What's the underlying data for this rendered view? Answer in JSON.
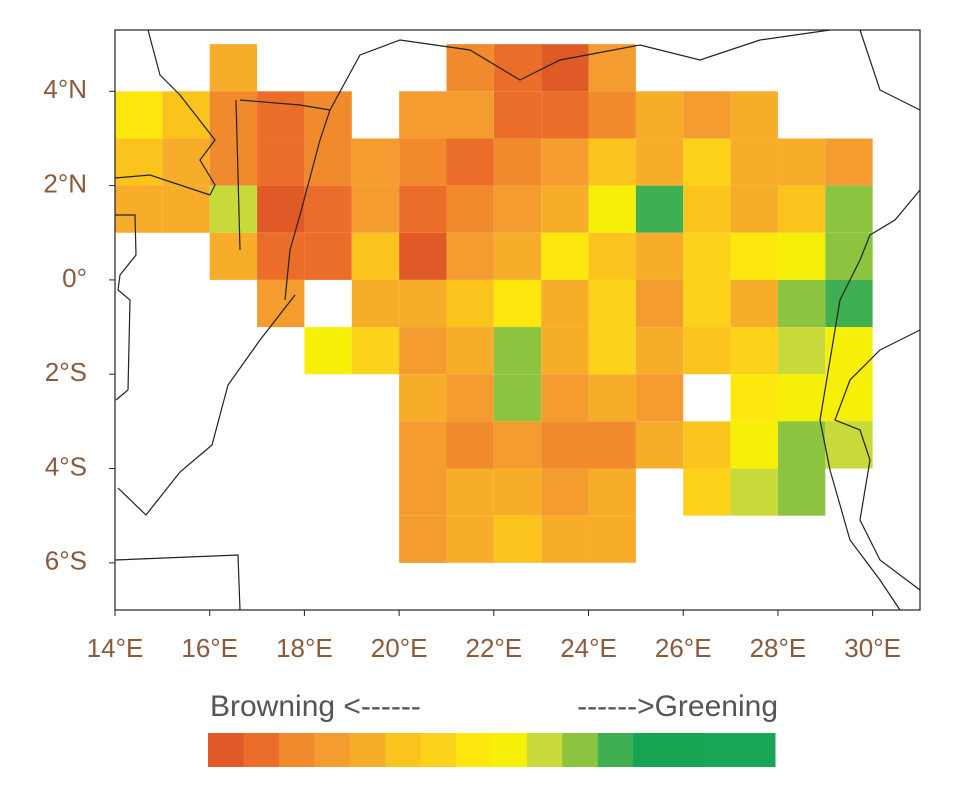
{
  "map": {
    "xlim": [
      14,
      31
    ],
    "ylim": [
      -7,
      5.3
    ],
    "xticks": [
      {
        "value": 14,
        "label": "14°E"
      },
      {
        "value": 16,
        "label": "16°E"
      },
      {
        "value": 18,
        "label": "18°E"
      },
      {
        "value": 20,
        "label": "20°E"
      },
      {
        "value": 22,
        "label": "22°E"
      },
      {
        "value": 24,
        "label": "24°E"
      },
      {
        "value": 26,
        "label": "26°E"
      },
      {
        "value": 28,
        "label": "28°E"
      },
      {
        "value": 30,
        "label": "30°E"
      }
    ],
    "yticks": [
      {
        "value": 4,
        "label": "4°N"
      },
      {
        "value": 2,
        "label": "2°N"
      },
      {
        "value": 0,
        "label": "0°"
      },
      {
        "value": -2,
        "label": "2°S"
      },
      {
        "value": -4,
        "label": "4°S"
      },
      {
        "value": -6,
        "label": "6°S"
      }
    ],
    "grid_lon0": 14,
    "grid_lat0": 5,
    "cell": 1,
    "grid": [
      [
        null,
        null,
        4,
        null,
        null,
        null,
        null,
        2,
        1,
        0,
        3,
        null,
        null,
        null,
        null,
        null,
        null
      ],
      [
        7,
        5,
        2,
        1,
        2,
        null,
        3,
        3,
        1,
        1,
        2,
        4,
        3,
        4,
        null,
        null,
        null
      ],
      [
        5,
        4,
        2,
        1,
        2,
        3,
        2,
        1,
        2,
        3,
        5,
        4,
        6,
        4,
        4,
        3,
        null
      ],
      [
        4,
        4,
        9,
        0,
        1,
        3,
        1,
        2,
        3,
        4,
        8,
        11,
        5,
        4,
        5,
        10,
        null
      ],
      [
        null,
        null,
        4,
        1,
        1,
        5,
        0,
        3,
        4,
        7,
        5,
        4,
        6,
        7,
        8,
        10,
        null
      ],
      [
        null,
        null,
        null,
        3,
        null,
        4,
        4,
        5,
        7,
        4,
        6,
        3,
        6,
        4,
        10,
        11,
        null
      ],
      [
        null,
        null,
        null,
        null,
        8,
        6,
        3,
        4,
        10,
        4,
        6,
        4,
        5,
        6,
        9,
        8,
        null
      ],
      [
        null,
        null,
        null,
        null,
        null,
        null,
        4,
        3,
        10,
        3,
        4,
        3,
        null,
        7,
        8,
        8,
        null
      ],
      [
        null,
        null,
        null,
        null,
        null,
        null,
        3,
        2,
        3,
        2,
        2,
        4,
        5,
        8,
        10,
        9,
        null
      ],
      [
        null,
        null,
        null,
        null,
        null,
        null,
        3,
        4,
        4,
        3,
        4,
        null,
        6,
        9,
        10,
        null,
        null
      ],
      [
        null,
        null,
        null,
        null,
        null,
        null,
        3,
        4,
        5,
        4,
        4,
        null,
        null,
        null,
        null,
        null,
        null
      ]
    ],
    "legend": {
      "left": "Browning <------",
      "right": "------>Greening",
      "colors": [
        "#e05a28",
        "#ea6e2a",
        "#f08a2c",
        "#f59c30",
        "#f8ad2a",
        "#fbc41c",
        "#fcd21a",
        "#fde70d",
        "#f6ef08",
        "#c8d93a",
        "#8cc43f",
        "#3fb052",
        "#17a553",
        "#17a553",
        "#1aa657",
        "#1aa657"
      ]
    }
  }
}
